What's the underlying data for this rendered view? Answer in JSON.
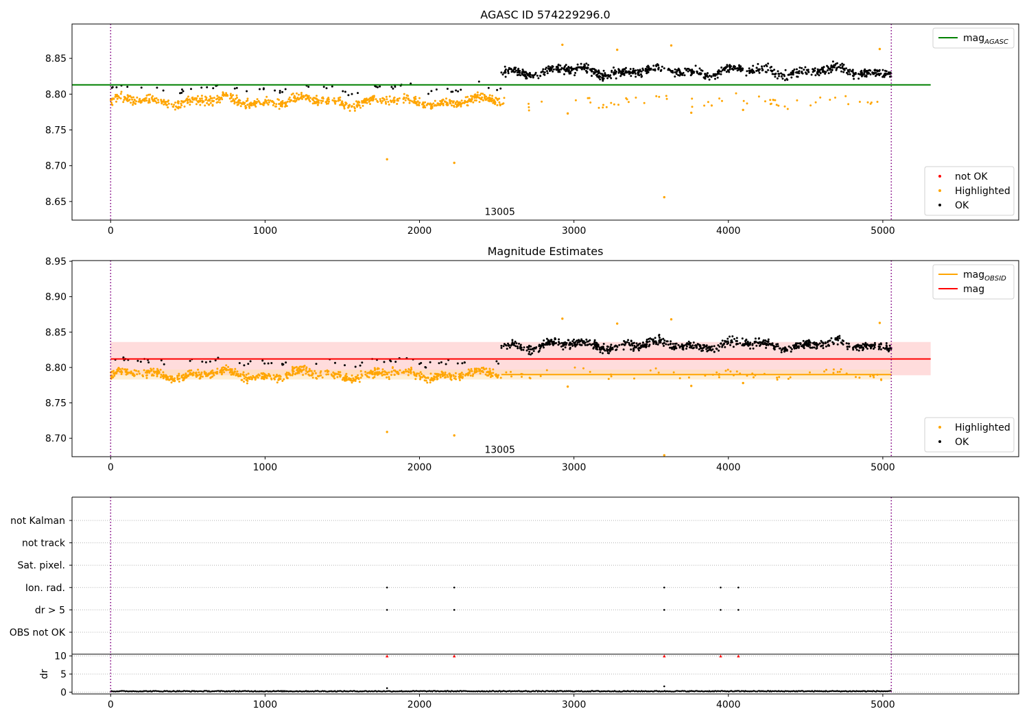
{
  "figure": {
    "background": "#ffffff"
  },
  "colors": {
    "ok": "#000000",
    "highlighted": "#ffa500",
    "not_ok": "#ff0000",
    "agasc_line": "#008000",
    "mag_line": "#ff0000",
    "mag_band": "#ffc0c0",
    "obsid_line": "#ffa500",
    "obsid_band": "#ffe0b0",
    "boundary": "#800080",
    "grid": "#b0b0b0",
    "dr_large": "#000000"
  },
  "chart_data": [
    {
      "id": "agasc",
      "type": "scatter",
      "title": "AGASC ID 574229296.0",
      "xlabel": "",
      "ylabel": "",
      "xlim": [
        -250,
        5880
      ],
      "ylim": [
        8.624,
        8.898
      ],
      "xticks": [
        0,
        1000,
        2000,
        3000,
        4000,
        5000
      ],
      "yticks": [
        8.65,
        8.7,
        8.75,
        8.8,
        8.85
      ],
      "ytick_labels": [
        "8.65",
        "8.70",
        "8.75",
        "8.80",
        "8.85"
      ],
      "obsid_label": {
        "text": "13005",
        "x": 2520,
        "y": 8.636
      },
      "boundaries": [
        0,
        5055
      ],
      "hlines": [
        {
          "name": "mag_AGASC",
          "y": 8.813,
          "x0": -250,
          "x1": 5310,
          "color_key": "agasc_line"
        }
      ],
      "series": [
        {
          "name": "not OK",
          "color_key": "not_ok",
          "points": []
        },
        {
          "name": "Highlighted",
          "color_key": "highlighted",
          "segments": [
            {
              "x0": 0,
              "x1": 2530,
              "base": 8.79,
              "noise": 0.011
            },
            {
              "x0": 2530,
              "x1": 5055,
              "base": 8.79,
              "noise": 0.011,
              "sparse": true
            }
          ],
          "outliers": [
            [
              1790,
              8.709
            ],
            [
              2225,
              8.704
            ],
            [
              3585,
              8.656
            ],
            [
              2960,
              8.773
            ],
            [
              3760,
              8.774
            ],
            [
              4095,
              8.778
            ],
            [
              2925,
              8.869
            ],
            [
              3630,
              8.868
            ],
            [
              4980,
              8.863
            ],
            [
              3280,
              8.862
            ]
          ]
        },
        {
          "name": "OK",
          "color_key": "ok",
          "segments": [
            {
              "x0": 0,
              "x1": 2530,
              "base": 8.808,
              "noise": 0.006,
              "sparse": true
            },
            {
              "x0": 2530,
              "x1": 5055,
              "base": 8.832,
              "noise": 0.011
            }
          ]
        }
      ],
      "legends": [
        {
          "position": "upper right",
          "entries": [
            {
              "kind": "line",
              "label": "mag",
              "sub": "AGASC",
              "color_key": "agasc_line"
            }
          ]
        },
        {
          "position": "lower right",
          "entries": [
            {
              "kind": "dot",
              "label": "not OK",
              "color_key": "not_ok"
            },
            {
              "kind": "dot",
              "label": "Highlighted",
              "color_key": "highlighted"
            },
            {
              "kind": "dot",
              "label": "OK",
              "color_key": "ok"
            }
          ]
        }
      ]
    },
    {
      "id": "estimates",
      "type": "scatter",
      "title": "Magnitude Estimates",
      "xlabel": "",
      "ylabel": "",
      "xlim": [
        -250,
        5880
      ],
      "ylim": [
        8.674,
        8.951
      ],
      "xticks": [
        0,
        1000,
        2000,
        3000,
        4000,
        5000
      ],
      "yticks": [
        8.7,
        8.75,
        8.8,
        8.85,
        8.9,
        8.95
      ],
      "ytick_labels": [
        "8.70",
        "8.75",
        "8.80",
        "8.85",
        "8.90",
        "8.95"
      ],
      "obsid_label": {
        "text": "13005",
        "x": 2520,
        "y": 8.684
      },
      "boundaries": [
        0,
        5055
      ],
      "bands": [
        {
          "x0": 0,
          "x1": 5310,
          "y0": 8.789,
          "y1": 8.836,
          "color_key": "mag_band"
        },
        {
          "x0": 0,
          "x1": 5055,
          "y0": 8.783,
          "y1": 8.797,
          "color_key": "obsid_band"
        }
      ],
      "hlines": [
        {
          "name": "mag",
          "y": 8.812,
          "x0": 0,
          "x1": 5310,
          "color_key": "mag_line"
        },
        {
          "name": "mag_OBSID",
          "y": 8.79,
          "x0": 2530,
          "x1": 5055,
          "color_key": "obsid_line"
        }
      ],
      "series": [
        {
          "name": "Highlighted",
          "color_key": "highlighted",
          "segments": [
            {
              "x0": 0,
              "x1": 2530,
              "base": 8.79,
              "noise": 0.011
            },
            {
              "x0": 2530,
              "x1": 5055,
              "base": 8.79,
              "noise": 0.011,
              "sparse": true
            }
          ],
          "outliers": [
            [
              1790,
              8.709
            ],
            [
              2225,
              8.704
            ],
            [
              3585,
              8.676
            ],
            [
              2960,
              8.773
            ],
            [
              3760,
              8.774
            ],
            [
              4095,
              8.778
            ],
            [
              2925,
              8.869
            ],
            [
              3630,
              8.868
            ],
            [
              4980,
              8.863
            ],
            [
              3280,
              8.862
            ]
          ]
        },
        {
          "name": "OK",
          "color_key": "ok",
          "segments": [
            {
              "x0": 0,
              "x1": 2530,
              "base": 8.808,
              "noise": 0.006,
              "sparse": true
            },
            {
              "x0": 2530,
              "x1": 5055,
              "base": 8.832,
              "noise": 0.011
            }
          ]
        }
      ],
      "legends": [
        {
          "position": "upper right",
          "entries": [
            {
              "kind": "line",
              "label": "mag",
              "sub": "OBSID",
              "color_key": "obsid_line"
            },
            {
              "kind": "line",
              "label": "mag",
              "sub": "",
              "color_key": "mag_line"
            }
          ]
        },
        {
          "position": "lower right",
          "entries": [
            {
              "kind": "dot",
              "label": "Highlighted",
              "color_key": "highlighted"
            },
            {
              "kind": "dot",
              "label": "OK",
              "color_key": "ok"
            }
          ]
        }
      ]
    },
    {
      "id": "flags",
      "type": "scatter",
      "title": "",
      "xlabel": "",
      "ylabel": "",
      "xlim": [
        -250,
        5880
      ],
      "categories": [
        "not Kalman",
        "not track",
        "Sat. pixel.",
        "Ion. rad.",
        "dr > 5",
        "OBS not OK"
      ],
      "boundaries": [
        0,
        5055
      ],
      "series": [
        {
          "name": "Ion. rad.",
          "points": [
            1790,
            2225,
            3585,
            3950,
            4065
          ]
        },
        {
          "name": "dr > 5",
          "points": [
            1790,
            2225,
            3585,
            3950,
            4065
          ]
        }
      ]
    },
    {
      "id": "dr",
      "type": "scatter",
      "title": "",
      "xlabel": "",
      "ylabel": "dr",
      "xlim": [
        -250,
        5880
      ],
      "ylim": [
        -0.5,
        10.5
      ],
      "xticks": [
        0,
        1000,
        2000,
        3000,
        4000,
        5000
      ],
      "yticks": [
        0,
        5,
        10
      ],
      "ytick_labels": [
        "0",
        "5",
        "10"
      ],
      "boundaries": [
        0,
        5055
      ],
      "clipped_markers": {
        "y": 10,
        "x": [
          1790,
          2225,
          3585,
          3950,
          4065
        ]
      },
      "series": [
        {
          "name": "dr",
          "range": [
            0,
            5055
          ],
          "typical": 0.25,
          "peaks": [
            [
              1790,
              1.1
            ],
            [
              3585,
              1.6
            ]
          ]
        }
      ]
    }
  ]
}
